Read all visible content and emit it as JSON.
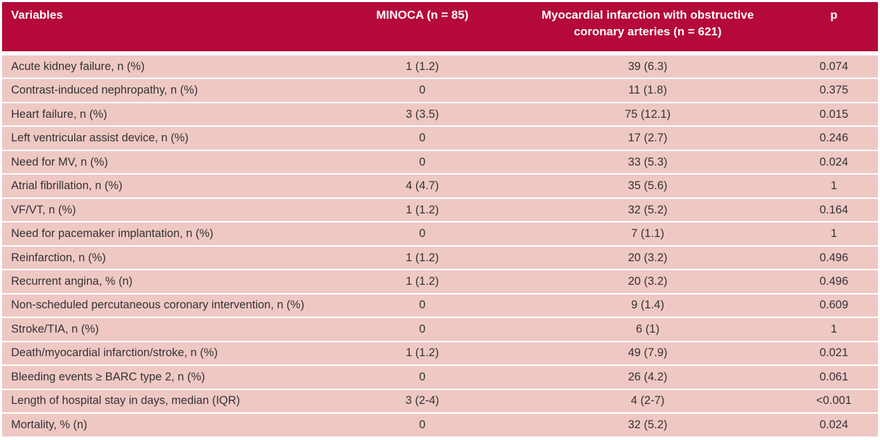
{
  "table": {
    "headers": {
      "variables": "Variables",
      "minoca": "MINOCA (n = 85)",
      "obstructive_line1": "Myocardial infarction with obstructive",
      "obstructive_line2": "coronary arteries (n = 621)",
      "p": "p"
    },
    "rows": [
      {
        "variable": "Acute kidney failure, n (%)",
        "minoca": "1 (1.2)",
        "obstructive": "39 (6.3)",
        "p": "0.074"
      },
      {
        "variable": "Contrast-induced nephropathy, n (%)",
        "minoca": "0",
        "obstructive": "11 (1.8)",
        "p": "0.375"
      },
      {
        "variable": "Heart failure, n (%)",
        "minoca": "3 (3.5)",
        "obstructive": "75 (12.1)",
        "p": "0.015"
      },
      {
        "variable": "Left ventricular assist device, n (%)",
        "minoca": "0",
        "obstructive": "17 (2.7)",
        "p": "0.246"
      },
      {
        "variable": "Need for MV, n (%)",
        "minoca": "0",
        "obstructive": "33 (5.3)",
        "p": "0.024"
      },
      {
        "variable": "Atrial fibrillation, n (%)",
        "minoca": "4 (4.7)",
        "obstructive": "35 (5.6)",
        "p": "1"
      },
      {
        "variable": "VF/VT, n (%)",
        "minoca": "1 (1.2)",
        "obstructive": "32 (5.2)",
        "p": "0.164"
      },
      {
        "variable": "Need for pacemaker implantation, n (%)",
        "minoca": "0",
        "obstructive": "7 (1.1)",
        "p": "1"
      },
      {
        "variable": "Reinfarction, n (%)",
        "minoca": "1 (1.2)",
        "obstructive": "20 (3.2)",
        "p": "0.496"
      },
      {
        "variable": "Recurrent angina, % (n)",
        "minoca": "1 (1.2)",
        "obstructive": "20 (3.2)",
        "p": "0.496"
      },
      {
        "variable": "Non-scheduled percutaneous coronary intervention, n (%)",
        "minoca": "0",
        "obstructive": "9 (1.4)",
        "p": "0.609"
      },
      {
        "variable": "Stroke/TIA, n (%)",
        "minoca": "0",
        "obstructive": "6 (1)",
        "p": "1"
      },
      {
        "variable": "Death/myocardial infarction/stroke, n (%)",
        "minoca": "1 (1.2)",
        "obstructive": "49 (7.9)",
        "p": "0.021"
      },
      {
        "variable": "Bleeding events ≥ BARC type 2, n (%)",
        "minoca": "0",
        "obstructive": "26 (4.2)",
        "p": "0.061"
      },
      {
        "variable": "Length of hospital stay in days, median (IQR)",
        "minoca": "3 (2-4)",
        "obstructive": "4 (2-7)",
        "p": "<0.001"
      },
      {
        "variable": "Mortality, % (n)",
        "minoca": "0",
        "obstructive": "32 (5.2)",
        "p": "0.024"
      }
    ]
  },
  "colors": {
    "header_bg": "#b5093a",
    "row_bg": "#efc8c4"
  }
}
